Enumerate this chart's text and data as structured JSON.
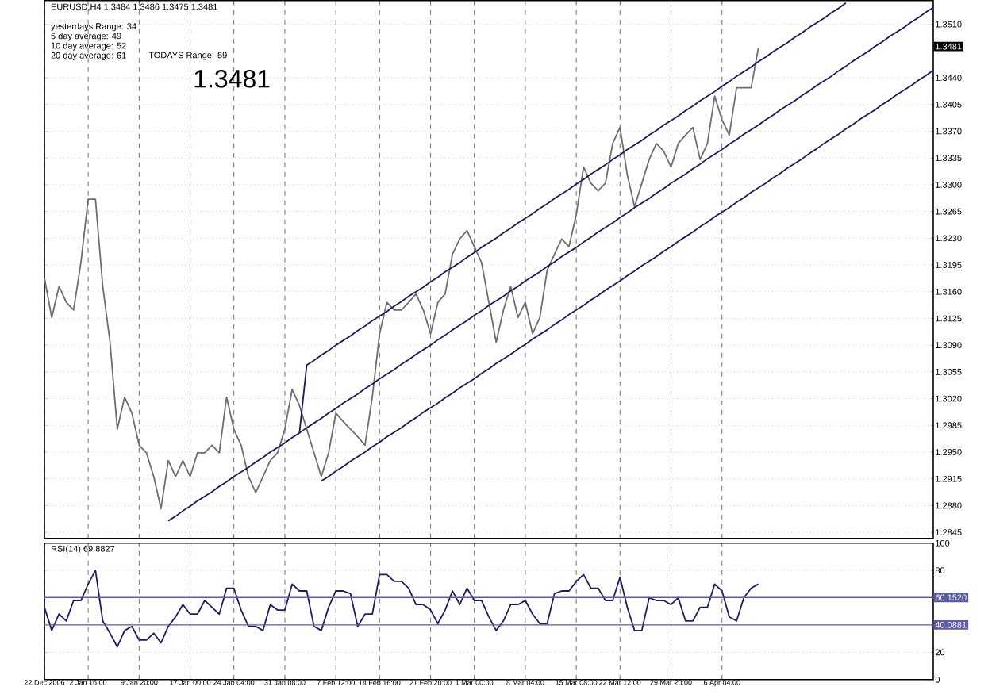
{
  "chart_data": [
    {
      "type": "line",
      "title": "EURUSD,H4  1.3484 1.3486 1.3475 1.3481",
      "annotations": [
        "yesterdays Range: 34",
        "5 day average: 49",
        "10 day average: 52",
        "20 day average: 61",
        "TODAYS Range: 59",
        "1.3481",
        {
          "text": "1.3481",
          "y": 1.3481
        }
      ],
      "categories": [
        null,
        null,
        null,
        null,
        null,
        null,
        null,
        null,
        null,
        null,
        null,
        null,
        null,
        null,
        null,
        null,
        null,
        null,
        null,
        null,
        null,
        null,
        null,
        null,
        null,
        null,
        null,
        null,
        null,
        null,
        null,
        null,
        null,
        null,
        null,
        null,
        null,
        null,
        null,
        null,
        null,
        null,
        null,
        null,
        null,
        null,
        null,
        null,
        null,
        null,
        null,
        null,
        null,
        null,
        null,
        null,
        null,
        null,
        null,
        null,
        null,
        null,
        null,
        null,
        null,
        null,
        null,
        null,
        null,
        null,
        null,
        null,
        null,
        null,
        null,
        null,
        null,
        null,
        null,
        null,
        null,
        null,
        null,
        null,
        null,
        null,
        null,
        null,
        null,
        null,
        null,
        null,
        null,
        null,
        null,
        null,
        null,
        null,
        null,
        null,
        null,
        null,
        null,
        null,
        null,
        null,
        null,
        null,
        null,
        null,
        null,
        null,
        null,
        null,
        null,
        null,
        null,
        null,
        null,
        null,
        null,
        null,
        null
      ],
      "ylim": [
        1.2837,
        1.3541
      ],
      "yticks": [
        1.2845,
        {
          "value": 1.288,
          "label": "1.2880"
        },
        1.2915,
        {
          "value": 1.295,
          "label": "1.2950"
        },
        1.2985,
        {
          "value": 1.302,
          "label": "1.3020"
        },
        1.3055,
        {
          "value": 1.309,
          "label": "1.3090"
        },
        1.3125,
        {
          "value": 1.316,
          "label": "1.3160"
        },
        1.3195,
        {
          "value": 1.323,
          "label": "1.3230"
        },
        1.3265,
        {
          "value": 1.33,
          "label": "1.3300"
        },
        1.3335,
        {
          "value": 1.337,
          "label": "1.3370"
        },
        1.3405,
        {
          "value": 1.344,
          "label": "1.3440"
        },
        {
          "value": 1.351,
          "label": "1.3510"
        }
      ],
      "tick_labels": "y",
      "grid": true,
      "series": [
        {
          "color": "#6e6e6e",
          "values": [
            1.3178,
            1.3126,
            1.3167,
            1.3146,
            1.3136,
            1.3198,
            1.3281,
            1.3281,
            1.3167,
            1.3094,
            1.298,
            1.3022,
            1.3001,
            1.2959,
            1.2949,
            1.2918,
            1.2876,
            1.2939,
            1.2918,
            1.2939,
            1.2918,
            1.2949,
            1.2949,
            1.2959,
            1.2949,
            1.3022,
            1.298,
            1.2959,
            1.2918,
            1.2897,
            1.2918,
            1.2939,
            1.2949,
            1.298,
            1.3032,
            1.3011,
            1.298,
            1.2949,
            1.2918,
            1.2949,
            1.3001,
            1.299,
            1.298,
            1.297,
            1.2959,
            1.3022,
            1.3105,
            1.3146,
            1.3136,
            1.3136,
            1.3146,
            1.3157,
            1.3136,
            1.3105,
            1.3146,
            1.3157,
            1.3209,
            1.3229,
            1.324,
            1.3219,
            1.3198,
            1.3146,
            1.3094,
            1.3136,
            1.3167,
            1.3126,
            1.3146,
            1.3105,
            1.3126,
            1.3188,
            1.3209,
            1.3229,
            1.3219,
            1.3261,
            1.3323,
            1.3302,
            1.3292,
            1.3302,
            1.3354,
            1.3375,
            1.3313,
            1.3271,
            1.3302,
            1.3333,
            1.3354,
            1.3344,
            1.3323,
            1.3354,
            1.3365,
            1.3375,
            1.3333,
            1.3354,
            1.3416,
            1.3385,
            1.3365,
            1.3427,
            1.3427,
            1.3427,
            1.3479,
            null,
            null,
            null,
            null,
            null,
            null,
            null,
            null,
            null,
            null,
            null,
            null,
            null,
            null,
            null,
            null,
            null,
            null,
            null,
            null,
            null,
            null,
            null,
            null
          ]
        },
        {
          "color": "#1a1a5e",
          "values": [
            null,
            null,
            null,
            null,
            null,
            null,
            null,
            null,
            null,
            null,
            null,
            null,
            null,
            null,
            null,
            null,
            null,
            null,
            null,
            null,
            null,
            null,
            null,
            null,
            null,
            null,
            null,
            null,
            null,
            null,
            null,
            null,
            null,
            null,
            null,
            1.2975,
            1.3064,
            1.307,
            1.3077,
            1.3083,
            1.309,
            1.3096,
            1.3102,
            1.3109,
            1.3115,
            1.3122,
            1.3128,
            1.3134,
            1.3141,
            1.3147,
            1.3154,
            1.316,
            1.3166,
            1.3173,
            1.3179,
            1.3186,
            1.3192,
            1.3198,
            1.3205,
            1.3211,
            1.3218,
            1.3224,
            1.323,
            1.3237,
            1.3243,
            1.325,
            1.3256,
            1.3262,
            1.3269,
            1.3275,
            1.3282,
            1.3288,
            1.3294,
            1.3301,
            1.3307,
            1.3314,
            1.332,
            1.3326,
            1.3333,
            1.3339,
            1.3346,
            1.3352,
            1.3358,
            1.3365,
            1.3371,
            1.3378,
            1.3384,
            1.339,
            1.3397,
            1.3403,
            1.341,
            1.3416,
            1.3422,
            1.3429,
            1.3435,
            1.3442,
            1.3448,
            1.3454,
            1.3461,
            1.3467,
            1.3474,
            1.348,
            1.3486,
            1.3493,
            1.3499,
            1.3506,
            1.3512,
            1.3518,
            1.3525,
            1.3531,
            1.3538,
            null,
            null,
            null,
            null,
            null,
            null,
            null,
            null,
            null,
            null,
            null,
            null
          ]
        },
        {
          "color": "#1a1a5e",
          "values": [
            null,
            null,
            null,
            null,
            null,
            null,
            null,
            null,
            null,
            null,
            null,
            null,
            null,
            null,
            null,
            null,
            null,
            1.286,
            1.2866,
            1.2873,
            1.2879,
            1.2886,
            1.2892,
            1.2898,
            1.2905,
            1.2911,
            1.2918,
            1.2924,
            1.293,
            1.2937,
            1.2943,
            1.295,
            1.2956,
            1.2962,
            1.2969,
            1.2975,
            1.2982,
            1.2988,
            1.2994,
            1.3001,
            1.3007,
            1.3014,
            1.302,
            1.3026,
            1.3033,
            1.3039,
            1.3046,
            1.3052,
            1.3058,
            1.3065,
            1.3071,
            1.3078,
            1.3084,
            1.309,
            1.3097,
            1.3103,
            1.311,
            1.3116,
            1.3122,
            1.3129,
            1.3135,
            1.3142,
            1.3148,
            1.3154,
            1.3161,
            1.3167,
            1.3174,
            1.318,
            1.3186,
            1.3193,
            1.3199,
            1.3206,
            1.3212,
            1.3218,
            1.3225,
            1.3231,
            1.3238,
            1.3244,
            1.325,
            1.3257,
            1.3263,
            1.327,
            1.3276,
            1.3282,
            1.3289,
            1.3295,
            1.3302,
            1.3308,
            1.3314,
            1.3321,
            1.3327,
            1.3334,
            1.334,
            1.3346,
            1.3353,
            1.3359,
            1.3366,
            1.3372,
            1.3378,
            1.3385,
            1.3391,
            1.3398,
            1.3404,
            1.341,
            1.3417,
            1.3423,
            1.343,
            1.3436,
            1.3442,
            1.3449,
            1.3455,
            1.3462,
            1.3468,
            1.3474,
            1.3481,
            1.3487,
            1.3494,
            1.35,
            1.3506,
            1.3513,
            1.3519,
            1.3526,
            1.3532
          ]
        },
        {
          "color": "#1a1a5e",
          "values": [
            null,
            null,
            null,
            null,
            null,
            null,
            null,
            null,
            null,
            null,
            null,
            null,
            null,
            null,
            null,
            null,
            null,
            null,
            null,
            null,
            null,
            null,
            null,
            null,
            null,
            null,
            null,
            null,
            null,
            null,
            null,
            null,
            null,
            null,
            null,
            null,
            null,
            null,
            1.2912,
            1.2918,
            1.2925,
            1.2931,
            1.2938,
            1.2944,
            1.295,
            1.2957,
            1.2963,
            1.297,
            1.2976,
            1.2982,
            1.2989,
            1.2995,
            1.3002,
            1.3008,
            1.3014,
            1.3021,
            1.3027,
            1.3034,
            1.304,
            1.3046,
            1.3053,
            1.3059,
            1.3066,
            1.3072,
            1.3078,
            1.3085,
            1.3091,
            1.3098,
            1.3104,
            1.311,
            1.3117,
            1.3123,
            1.313,
            1.3136,
            1.3142,
            1.3149,
            1.3155,
            1.3162,
            1.3168,
            1.3174,
            1.3181,
            1.3187,
            1.3194,
            1.32,
            1.3206,
            1.3213,
            1.3219,
            1.3226,
            1.3232,
            1.3238,
            1.3245,
            1.3251,
            1.3258,
            1.3264,
            1.327,
            1.3277,
            1.3283,
            1.329,
            1.3296,
            1.3302,
            1.3309,
            1.3315,
            1.3322,
            1.3328,
            1.3334,
            1.3341,
            1.3347,
            1.3354,
            1.336,
            1.3366,
            1.3373,
            1.3379,
            1.3386,
            1.3392,
            1.3398,
            1.3405,
            1.3411,
            1.3418,
            1.3424,
            1.343,
            1.3437,
            1.3443,
            1.345
          ]
        }
      ]
    },
    {
      "type": "line",
      "title": "RSI(14) 69.8827",
      "categories": [
        "22 Dec 2006",
        null,
        null,
        null,
        null,
        null,
        "2 Jan 16:00",
        null,
        null,
        null,
        null,
        null,
        null,
        "9 Jan 20:00",
        null,
        null,
        null,
        null,
        null,
        null,
        "17 Jan 00:00",
        null,
        null,
        null,
        null,
        null,
        "24 Jan 04:00",
        null,
        null,
        null,
        null,
        null,
        null,
        "31 Jan 08:00",
        null,
        null,
        null,
        null,
        null,
        null,
        "7 Feb 12:00",
        null,
        null,
        null,
        null,
        null,
        "14 Feb 16:00",
        null,
        null,
        null,
        null,
        null,
        null,
        "21 Feb 20:00",
        null,
        null,
        null,
        null,
        null,
        "1 Mar 00:00",
        null,
        null,
        null,
        null,
        null,
        null,
        "8 Mar 04:00",
        null,
        null,
        null,
        null,
        null,
        null,
        "15 Mar 08:00",
        null,
        null,
        null,
        null,
        null,
        "22 Mar 12:00",
        null,
        null,
        null,
        null,
        null,
        null,
        "29 Mar 20:00",
        null,
        null,
        null,
        null,
        null,
        null,
        "6 Apr 04:00",
        null,
        null,
        null,
        null,
        null,
        null,
        null,
        null,
        null,
        null,
        null,
        null,
        null,
        null,
        null,
        null,
        null,
        null,
        null,
        null,
        null,
        null,
        null,
        null,
        null,
        null,
        null,
        null,
        null
      ],
      "ylim": [
        0,
        100
      ],
      "yticks": [
        0,
        20,
        80,
        100
      ],
      "grid": true,
      "ref_lines": [
        {
          "axis": "y",
          "value": 60.152,
          "label": "60.1520",
          "color": "#5a5aa8"
        },
        {
          "axis": "y",
          "value": 40.0881,
          "label": "40.0881",
          "color": "#5a5aa8"
        }
      ],
      "series": [
        {
          "color": "#1c1c6e",
          "values": [
            53,
            36,
            48,
            43,
            58,
            58,
            70,
            80,
            43,
            34,
            24,
            36,
            39,
            29,
            29,
            34,
            27,
            39,
            46,
            55,
            48,
            48,
            58,
            53,
            48,
            67,
            67,
            51,
            39,
            39,
            36,
            55,
            51,
            51,
            70,
            65,
            65,
            39,
            36,
            53,
            65,
            65,
            63,
            39,
            48,
            48,
            77,
            77,
            72,
            72,
            67,
            55,
            55,
            51,
            41,
            51,
            65,
            55,
            67,
            58,
            58,
            46,
            36,
            43,
            55,
            55,
            58,
            48,
            41,
            41,
            63,
            65,
            65,
            72,
            77,
            67,
            67,
            58,
            58,
            75,
            53,
            36,
            36,
            60,
            58,
            58,
            55,
            60,
            43,
            43,
            53,
            53,
            70,
            65,
            46,
            43,
            60,
            67,
            70,
            null,
            null,
            null,
            null,
            null,
            null,
            null,
            null,
            null,
            null,
            null,
            null,
            null,
            null,
            null,
            null,
            null,
            null,
            null,
            null,
            null,
            null,
            null,
            null
          ]
        }
      ]
    }
  ]
}
